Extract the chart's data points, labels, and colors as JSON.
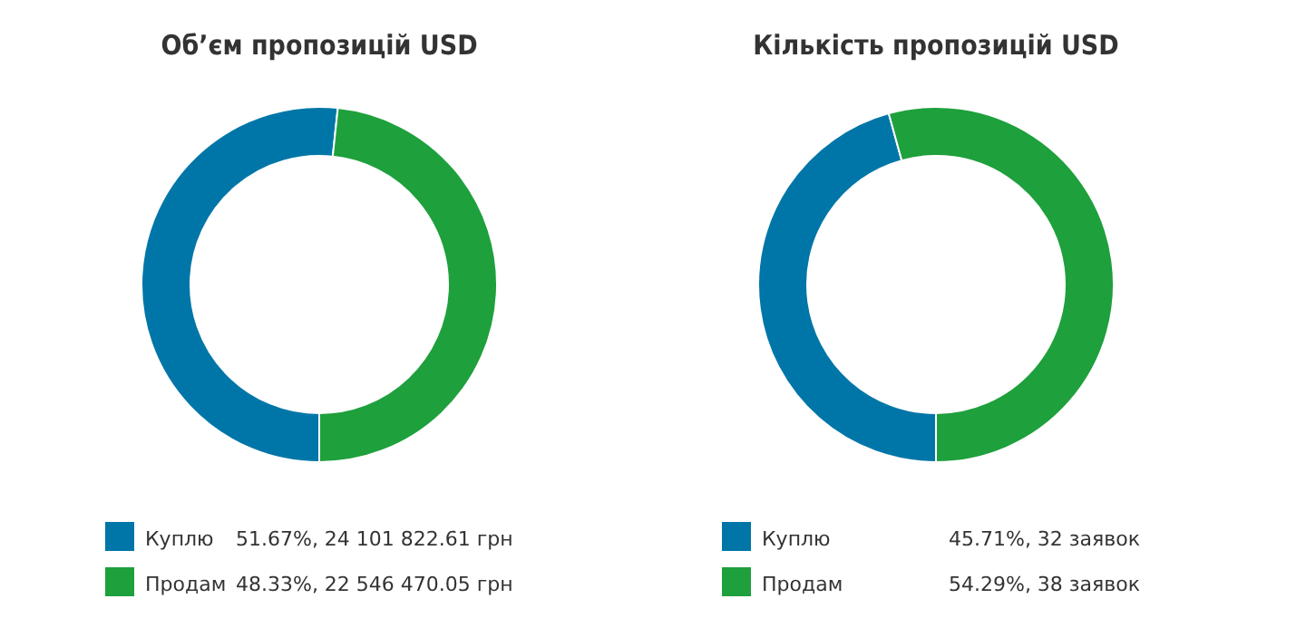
{
  "chart_data": [
    {
      "type": "donut",
      "title": "Об’єм пропозицій USD",
      "categories": [
        "Куплю",
        "Продам"
      ],
      "values": [
        24101822.61,
        22546470.05
      ],
      "colors": [
        "#0076a8",
        "#1ea03c"
      ],
      "value_labels": [
        "51.67%, 24 101 822.61 грн",
        "48.33%, 22 546 470.05 грн"
      ],
      "legend": "bottom"
    },
    {
      "type": "donut",
      "title": "Кількість пропозицій USD",
      "categories": [
        "Куплю",
        "Продам"
      ],
      "values": [
        32,
        38
      ],
      "colors": [
        "#0076a8",
        "#1ea03c"
      ],
      "value_labels": [
        "45.71%, 32 заявок",
        "54.29%, 38 заявок"
      ],
      "legend": "bottom"
    }
  ]
}
